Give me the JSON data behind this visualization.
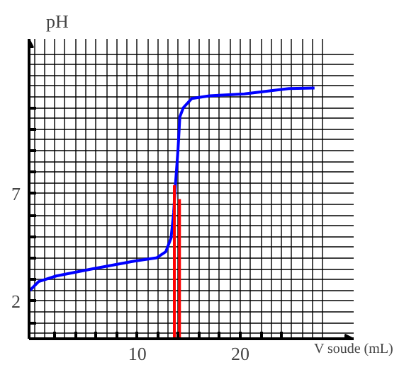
{
  "chart_data": {
    "type": "line",
    "xlabel": "V soude (mL)",
    "ylabel": "pH",
    "xlim": [
      -0.5,
      31
    ],
    "ylim": [
      0.25,
      14.2
    ],
    "xticks": [
      {
        "value": 2,
        "label": null
      },
      {
        "value": 4,
        "label": null
      },
      {
        "value": 6,
        "label": null
      },
      {
        "value": 8,
        "label": null
      },
      10,
      {
        "value": 12,
        "label": null
      },
      {
        "value": 14,
        "label": null
      },
      {
        "value": 16,
        "label": null
      },
      {
        "value": 18,
        "label": null
      },
      20,
      {
        "value": 22,
        "label": null
      },
      {
        "value": 24,
        "label": null
      }
    ],
    "yticks": [
      {
        "value": 1,
        "label": null
      },
      2,
      {
        "value": 3,
        "label": null
      },
      {
        "value": 4,
        "label": null
      },
      {
        "value": 5,
        "label": null
      },
      {
        "value": 6,
        "label": null
      },
      7,
      {
        "value": 8,
        "label": null
      },
      {
        "value": 9,
        "label": null
      },
      {
        "value": 10,
        "label": null
      },
      {
        "value": 11,
        "label": null
      }
    ],
    "grid": true,
    "marker": "none",
    "line_style": "solid",
    "series": [
      {
        "color": "#0000ff",
        "x": [
          -0.43,
          0.43,
          2.13,
          5.53,
          9.79,
          11.9,
          12.77,
          13.28,
          13.53,
          13.7,
          13.96,
          14.13,
          14.47,
          15.3,
          17.0,
          20.4,
          24.7,
          27.2
        ],
        "values": [
          2.49,
          2.91,
          3.17,
          3.49,
          3.87,
          4.02,
          4.3,
          4.94,
          6.11,
          7.38,
          9.09,
          10.57,
          11.0,
          11.43,
          11.55,
          11.64,
          11.89,
          11.91
        ]
      },
      {
        "color": "#ff0000",
        "x": [
          13.6,
          13.6
        ],
        "values": [
          0.25,
          7.4
        ]
      },
      {
        "color": "#ff0000",
        "x": [
          14.1,
          14.1
        ],
        "values": [
          0.25,
          6.75
        ]
      }
    ]
  }
}
